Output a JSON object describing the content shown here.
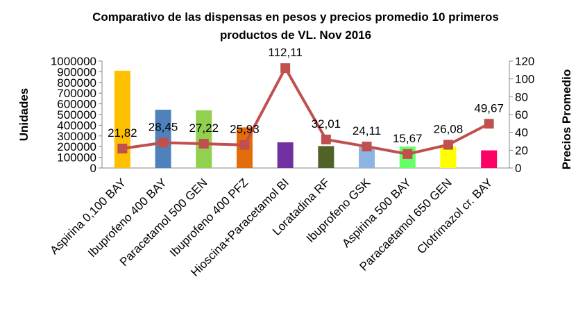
{
  "chart_data": {
    "type": "bar+line",
    "title_line1": "Comparativo  de las dispensas  en pesos  y precios promedio 10 primeros",
    "title_line2": "productos de VL. Nov 2016",
    "ylabel_left": "Unidades",
    "ylabel_right": "Precios Promedio",
    "ylim_left": [
      0,
      1000000
    ],
    "yticks_left": [
      "0",
      "100000",
      "200000",
      "300000",
      "400000",
      "500000",
      "600000",
      "700000",
      "800000",
      "900000",
      "1000000"
    ],
    "ylim_right": [
      0,
      120
    ],
    "yticks_right": [
      "0",
      "20",
      "40",
      "60",
      "80",
      "100",
      "120"
    ],
    "categories": [
      "Aspirina 0,100 BAY",
      "Ibuprofeno 400 BAY",
      "Paracetamol 500 GEN",
      "Ibuprofeno 400 PFZ",
      "Hioscina+Paracetamol  BI",
      "Loratadina RF",
      "Ibuprofeno  GSK",
      "Aspirina 500 BAY",
      "Paracaetamol 650 GEN",
      "Clotrimazol cr. BAY"
    ],
    "bar_values": [
      910000,
      545000,
      540000,
      380000,
      240000,
      205000,
      200000,
      200000,
      200000,
      165000
    ],
    "bar_colors": [
      "#FFC000",
      "#4F81BD",
      "#92D050",
      "#E46C0A",
      "#7030A0",
      "#4F6228",
      "#8DB4E2",
      "#66FF66",
      "#FFFF00",
      "#FF0066"
    ],
    "line_values": [
      21.82,
      28.45,
      27.22,
      25.93,
      112.11,
      32.01,
      24.11,
      15.67,
      26.08,
      49.67
    ],
    "line_labels": [
      "21,82",
      "28,45",
      "27,22",
      "25,93",
      "112,11",
      "32,01",
      "24,11",
      "15,67",
      "26,08",
      "49,67"
    ],
    "line_color": "#C0504D",
    "grid": false,
    "legend": "none"
  }
}
